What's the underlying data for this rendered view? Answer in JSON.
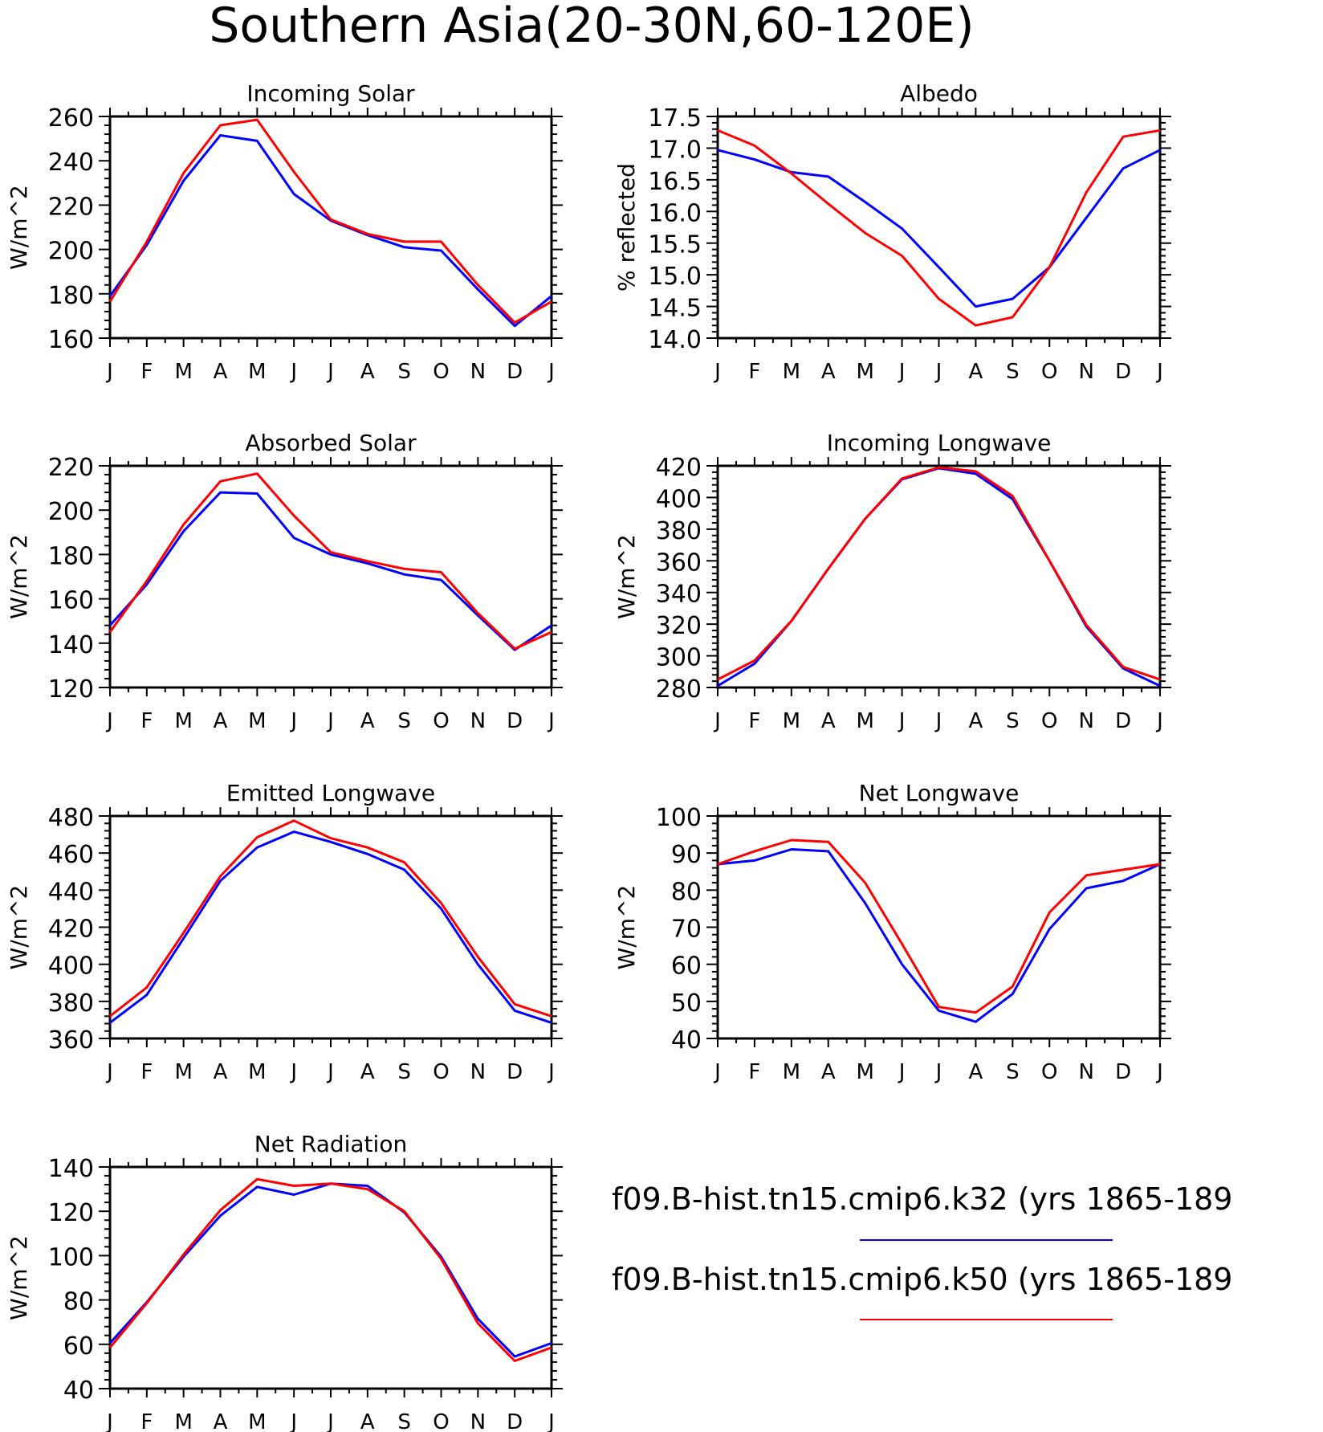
{
  "page_title": "Southern Asia(20-30N,60-120E)",
  "legend": {
    "entries": [
      {
        "label": "f09.B-hist.tn15.cmip6.k32 (yrs 1865-189",
        "color": "#0000ff"
      },
      {
        "label": "f09.B-hist.tn15.cmip6.k50 (yrs 1865-189",
        "color": "#ff0000"
      }
    ]
  },
  "chart_data": [
    {
      "type": "line",
      "title": "Incoming Solar",
      "ylabel": "W/m^2",
      "categories": [
        "J",
        "F",
        "M",
        "A",
        "M",
        "J",
        "J",
        "A",
        "S",
        "O",
        "N",
        "D",
        "J"
      ],
      "ylim": [
        160,
        260
      ],
      "yticks": [
        "160",
        "180",
        "200",
        "220",
        "240",
        "260"
      ],
      "series": [
        {
          "color": "#0000ff",
          "values": [
            179,
            202,
            231,
            251.5,
            249,
            225,
            213,
            206.5,
            201,
            199.5,
            182,
            165.5,
            179
          ]
        },
        {
          "color": "#ff0000",
          "values": [
            176.5,
            203.5,
            234.5,
            256,
            258.5,
            235,
            213.5,
            207,
            203.5,
            203.5,
            184,
            167,
            176.5
          ]
        }
      ]
    },
    {
      "type": "line",
      "title": "Albedo",
      "ylabel": "% reflected",
      "categories": [
        "J",
        "F",
        "M",
        "A",
        "M",
        "J",
        "J",
        "A",
        "S",
        "O",
        "N",
        "D",
        "J"
      ],
      "ylim": [
        14.0,
        17.5
      ],
      "yticks": [
        "14.0",
        "14.5",
        "15.0",
        "15.5",
        "16.0",
        "16.5",
        "17.0",
        "17.5"
      ],
      "series": [
        {
          "color": "#0000ff",
          "values": [
            16.97,
            16.82,
            16.62,
            16.55,
            16.15,
            15.73,
            15.12,
            14.5,
            14.62,
            15.12,
            15.9,
            16.68,
            16.97
          ]
        },
        {
          "color": "#ff0000",
          "values": [
            17.28,
            17.04,
            16.6,
            16.12,
            15.66,
            15.3,
            14.62,
            14.2,
            14.33,
            15.12,
            16.3,
            17.18,
            17.28
          ]
        }
      ]
    },
    {
      "type": "line",
      "title": "Absorbed Solar",
      "ylabel": "W/m^2",
      "categories": [
        "J",
        "F",
        "M",
        "A",
        "M",
        "J",
        "J",
        "A",
        "S",
        "O",
        "N",
        "D",
        "J"
      ],
      "ylim": [
        120,
        220
      ],
      "yticks": [
        "120",
        "140",
        "160",
        "180",
        "200",
        "220"
      ],
      "series": [
        {
          "color": "#0000ff",
          "values": [
            148,
            166.5,
            190.5,
            208,
            207.5,
            187.5,
            180,
            176,
            171,
            168.5,
            152.5,
            137,
            148
          ]
        },
        {
          "color": "#ff0000",
          "values": [
            145,
            168,
            193.5,
            213,
            216.5,
            197.5,
            181,
            177,
            173.5,
            172,
            153.5,
            137.5,
            145
          ]
        }
      ]
    },
    {
      "type": "line",
      "title": "Incoming Longwave",
      "ylabel": "W/m^2",
      "categories": [
        "J",
        "F",
        "M",
        "A",
        "M",
        "J",
        "J",
        "A",
        "S",
        "O",
        "N",
        "D",
        "J"
      ],
      "ylim": [
        280,
        420
      ],
      "yticks": [
        "280",
        "300",
        "320",
        "340",
        "360",
        "380",
        "400",
        "420"
      ],
      "series": [
        {
          "color": "#0000ff",
          "values": [
            281,
            295,
            322,
            355,
            386.5,
            411.5,
            418.5,
            415,
            399,
            360,
            318.5,
            292,
            281
          ]
        },
        {
          "color": "#ff0000",
          "values": [
            285,
            297,
            322,
            355,
            386.5,
            412,
            419,
            416.5,
            401,
            360,
            319.5,
            293,
            285
          ]
        }
      ]
    },
    {
      "type": "line",
      "title": "Emitted Longwave",
      "ylabel": "W/m^2",
      "categories": [
        "J",
        "F",
        "M",
        "A",
        "M",
        "J",
        "J",
        "A",
        "S",
        "O",
        "N",
        "D",
        "J"
      ],
      "ylim": [
        360,
        480
      ],
      "yticks": [
        "360",
        "380",
        "400",
        "420",
        "440",
        "460",
        "480"
      ],
      "series": [
        {
          "color": "#0000ff",
          "values": [
            368.5,
            383.5,
            414,
            445,
            463,
            471.5,
            466,
            459.5,
            451,
            430,
            400,
            375,
            368.5
          ]
        },
        {
          "color": "#ff0000",
          "values": [
            372,
            387.5,
            417,
            447.5,
            468.5,
            477.5,
            468,
            463,
            455,
            433,
            404,
            378.5,
            372
          ]
        }
      ]
    },
    {
      "type": "line",
      "title": "Net Longwave",
      "ylabel": "W/m^2",
      "categories": [
        "J",
        "F",
        "M",
        "A",
        "M",
        "J",
        "J",
        "A",
        "S",
        "O",
        "N",
        "D",
        "J"
      ],
      "ylim": [
        40,
        100
      ],
      "yticks": [
        "40",
        "50",
        "60",
        "70",
        "80",
        "90",
        "100"
      ],
      "series": [
        {
          "color": "#0000ff",
          "values": [
            87,
            88,
            91,
            90.5,
            76.5,
            60,
            47.5,
            44.5,
            52,
            69.5,
            80.5,
            82.5,
            87
          ]
        },
        {
          "color": "#ff0000",
          "values": [
            87,
            90.5,
            93.5,
            93,
            82,
            65.5,
            48.5,
            47,
            54,
            74,
            84,
            85.5,
            87
          ]
        }
      ]
    },
    {
      "type": "line",
      "title": "Net Radiation",
      "ylabel": "W/m^2",
      "categories": [
        "J",
        "F",
        "M",
        "A",
        "M",
        "J",
        "J",
        "A",
        "S",
        "O",
        "N",
        "D",
        "J"
      ],
      "ylim": [
        40,
        140
      ],
      "yticks": [
        "40",
        "60",
        "80",
        "100",
        "120",
        "140"
      ],
      "series": [
        {
          "color": "#0000ff",
          "values": [
            60.5,
            79,
            99.5,
            118,
            131,
            127.5,
            132.5,
            131.5,
            119.5,
            99.5,
            71.5,
            54.5,
            60.5
          ]
        },
        {
          "color": "#ff0000",
          "values": [
            58.5,
            78.5,
            100.5,
            120.5,
            134.5,
            131.5,
            132.5,
            130,
            120,
            98.5,
            69.5,
            52.5,
            58.5
          ]
        }
      ]
    }
  ]
}
